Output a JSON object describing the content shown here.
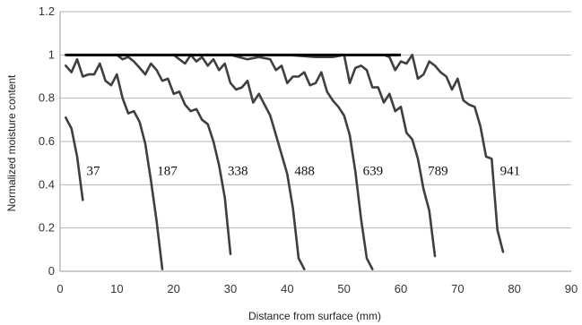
{
  "chart_data": {
    "type": "line",
    "title": "",
    "xlabel": "Distance from surface (mm)",
    "ylabel": "Normalized moisture content",
    "xlim": [
      0,
      90
    ],
    "ylim": [
      0,
      1.2
    ],
    "x_ticks": [
      0,
      10,
      20,
      30,
      40,
      50,
      60,
      70,
      80,
      90
    ],
    "y_ticks": [
      0,
      0.2,
      0.4,
      0.6,
      0.8,
      1,
      1.2
    ],
    "y_tick_labels": [
      "0",
      "0.2",
      "0.4",
      "0.6",
      "0.8",
      "1",
      "1.2"
    ],
    "grid": "horizontal",
    "legend": "none",
    "line_color": "#3f3f3f",
    "baseline_color": "#000000",
    "baseline": {
      "x": [
        1,
        60
      ],
      "y": [
        1,
        1
      ]
    },
    "series": [
      {
        "label": "37",
        "x": [
          1,
          2,
          3,
          4
        ],
        "y": [
          0.71,
          0.66,
          0.53,
          0.33
        ]
      },
      {
        "label": "187",
        "x": [
          1,
          2,
          3,
          4,
          5,
          6,
          7,
          8,
          9,
          10,
          11,
          12,
          13,
          14,
          15,
          16,
          17,
          18
        ],
        "y": [
          0.95,
          0.92,
          0.98,
          0.9,
          0.91,
          0.91,
          0.96,
          0.88,
          0.86,
          0.91,
          0.8,
          0.73,
          0.74,
          0.69,
          0.59,
          0.42,
          0.23,
          0.01
        ]
      },
      {
        "label": "338",
        "x": [
          1,
          5,
          10,
          11,
          12,
          13,
          14,
          15,
          16,
          17,
          18,
          19,
          20,
          21,
          22,
          23,
          24,
          25,
          26,
          27,
          28,
          29,
          30
        ],
        "y": [
          1,
          1,
          1,
          0.98,
          0.99,
          0.97,
          0.94,
          0.91,
          0.96,
          0.93,
          0.88,
          0.89,
          0.82,
          0.83,
          0.77,
          0.74,
          0.75,
          0.7,
          0.68,
          0.6,
          0.49,
          0.34,
          0.08
        ]
      },
      {
        "label": "488",
        "x": [
          1,
          10,
          20,
          21,
          22,
          23,
          24,
          25,
          26,
          27,
          28,
          29,
          30,
          31,
          32,
          33,
          34,
          35,
          36,
          37,
          38,
          39,
          40,
          41,
          42,
          43
        ],
        "y": [
          1,
          1,
          1,
          0.98,
          0.96,
          1,
          0.97,
          0.99,
          0.95,
          0.98,
          0.93,
          0.96,
          0.87,
          0.84,
          0.85,
          0.88,
          0.78,
          0.82,
          0.77,
          0.72,
          0.63,
          0.54,
          0.45,
          0.29,
          0.06,
          0.01
        ]
      },
      {
        "label": "639",
        "x": [
          1,
          20,
          30,
          33,
          35,
          37,
          38,
          39,
          40,
          41,
          42,
          43,
          44,
          45,
          46,
          47,
          48,
          49,
          50,
          51,
          52,
          53,
          54,
          55
        ],
        "y": [
          1,
          1,
          1,
          0.98,
          0.99,
          0.98,
          0.93,
          0.95,
          0.87,
          0.9,
          0.9,
          0.92,
          0.86,
          0.87,
          0.92,
          0.83,
          0.79,
          0.76,
          0.72,
          0.63,
          0.46,
          0.24,
          0.06,
          0.01
        ]
      },
      {
        "label": "789",
        "x": [
          1,
          30,
          40,
          45,
          48,
          50,
          51,
          52,
          53,
          54,
          55,
          56,
          57,
          58,
          59,
          60,
          61,
          62,
          63,
          64,
          65,
          66
        ],
        "y": [
          1,
          1,
          1,
          0.99,
          0.99,
          1,
          0.87,
          0.94,
          0.95,
          0.93,
          0.85,
          0.85,
          0.78,
          0.82,
          0.74,
          0.76,
          0.64,
          0.61,
          0.52,
          0.38,
          0.28,
          0.07
        ]
      },
      {
        "label": "941",
        "x": [
          1,
          40,
          55,
          57,
          58,
          59,
          60,
          61,
          62,
          63,
          64,
          65,
          66,
          67,
          68,
          69,
          70,
          71,
          72,
          73,
          74,
          75,
          76,
          77,
          78
        ],
        "y": [
          1,
          1,
          1,
          1,
          0.99,
          0.93,
          0.97,
          0.96,
          1,
          0.89,
          0.91,
          0.97,
          0.95,
          0.92,
          0.9,
          0.84,
          0.89,
          0.79,
          0.77,
          0.76,
          0.67,
          0.53,
          0.52,
          0.19,
          0.09
        ]
      }
    ]
  }
}
